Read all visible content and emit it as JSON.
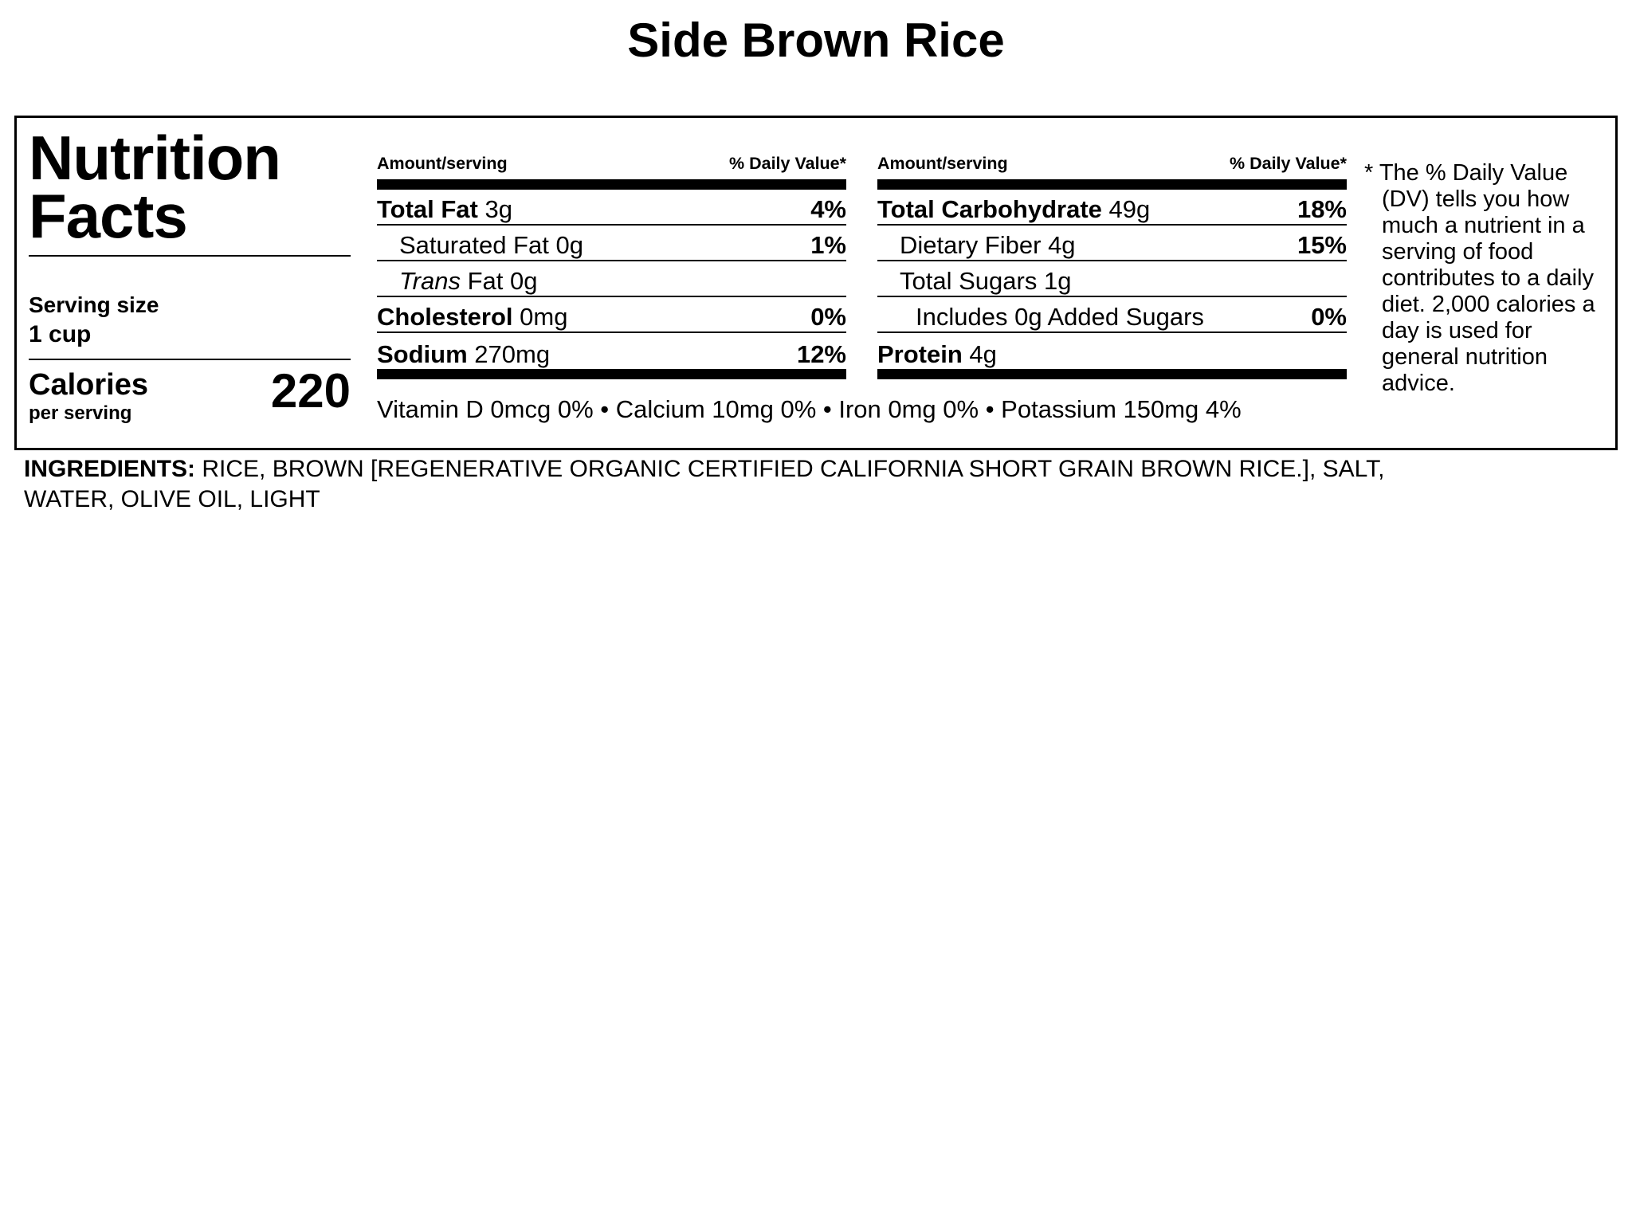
{
  "title": "Side Brown Rice",
  "label": {
    "heading_line1": "Nutrition",
    "heading_line2": "Facts",
    "serving_size_label": "Serving size",
    "serving_size_value": "1 cup",
    "calories_label": "Calories",
    "calories_sublabel": "per serving",
    "calories_value": "220",
    "amount_header": "Amount/serving",
    "dv_header": "% Daily Value*",
    "col1": {
      "rows": [
        {
          "name": "Total Fat",
          "amount": "3g",
          "dv": "4%"
        },
        {
          "name": "Saturated Fat",
          "amount": "0g",
          "dv": "1%"
        },
        {
          "name": "Trans",
          "amount": "Fat 0g",
          "dv": ""
        },
        {
          "name": "Cholesterol",
          "amount": "0mg",
          "dv": "0%"
        },
        {
          "name": "Sodium",
          "amount": "270mg",
          "dv": "12%"
        }
      ]
    },
    "col2": {
      "rows": [
        {
          "name": "Total Carbohydrate",
          "amount": "49g",
          "dv": "18%"
        },
        {
          "name": "Dietary Fiber",
          "amount": "4g",
          "dv": "15%"
        },
        {
          "name": "Total Sugars",
          "amount": "1g",
          "dv": ""
        },
        {
          "name": "Includes 0g Added Sugars",
          "amount": "",
          "dv": "0%"
        },
        {
          "name": "Protein",
          "amount": "4g",
          "dv": ""
        }
      ]
    },
    "vitamins": "Vitamin D 0mcg 0% • Calcium 10mg 0% • Iron 0mg 0% • Potassium 150mg 4%",
    "footnote_marker": "*",
    "footnote_text": "The % Daily Value (DV) tells you how much a nutrient in a serving of food contributes to a daily diet. 2,000 calories a day is used for general nutrition advice."
  },
  "ingredients": {
    "label": "INGREDIENTS:",
    "text": "RICE, BROWN [REGENERATIVE ORGANIC CERTIFIED CALIFORNIA SHORT GRAIN BROWN RICE.], SALT, WATER, OLIVE OIL, LIGHT"
  },
  "colors": {
    "text": "#000000",
    "background": "#ffffff"
  }
}
